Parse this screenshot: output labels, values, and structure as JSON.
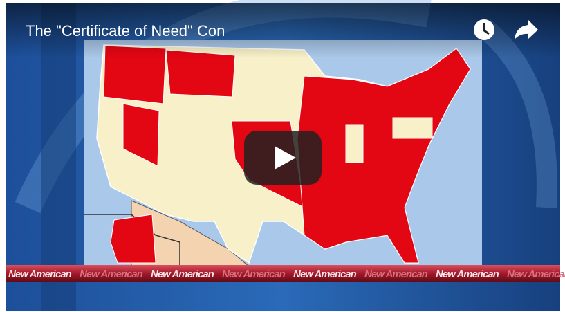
{
  "video": {
    "title": "The \"Certificate of Need\" Con"
  },
  "banner": {
    "items": [
      "New American",
      "New American",
      "New American",
      "New American",
      "New American",
      "New American",
      "New American",
      "New American"
    ]
  }
}
